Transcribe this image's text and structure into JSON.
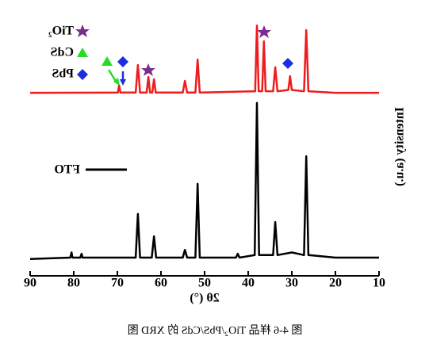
{
  "chart_data": {
    "type": "line",
    "x_label": "2θ (°)",
    "y_label": "Intensity (a.u.)",
    "caption": "图 4-6 样品 TiO₂/PbS/CdS 的 XRD 图",
    "xlim": [
      10,
      90
    ],
    "xticks": [
      10,
      20,
      30,
      40,
      50,
      60,
      70,
      80,
      90
    ],
    "ylim": [
      0,
      100
    ],
    "series": [
      {
        "name": "FTO",
        "color": "#000000",
        "x": [
          10,
          20,
          26.2,
          26.7,
          27.2,
          30,
          33.3,
          33.8,
          34.3,
          37.5,
          38,
          38.5,
          42,
          42.4,
          42.8,
          51.1,
          51.6,
          52.1,
          54,
          54.5,
          55,
          61.1,
          61.6,
          62.1,
          64.8,
          65.3,
          65.8,
          78,
          78.2,
          78.5,
          80.3,
          80.5,
          80.8,
          90
        ],
        "values": [
          7,
          7,
          8,
          46,
          8,
          9,
          8,
          20.7,
          8,
          8,
          66.5,
          8,
          7,
          8.5,
          7,
          7,
          35.4,
          7,
          7,
          10,
          7,
          7,
          15.2,
          7,
          7,
          23.8,
          7,
          7,
          8.5,
          7,
          7,
          9,
          7,
          6.5
        ]
      },
      {
        "name": "TiO₂/PbS/CdS",
        "color": "#ee1c1c",
        "x": [
          10,
          20,
          26.2,
          26.7,
          27.2,
          30,
          30.4,
          30.8,
          33.3,
          33.8,
          34.3,
          36,
          36.4,
          36.8,
          37.6,
          38,
          38.4,
          51.1,
          51.6,
          52.1,
          54,
          54.5,
          55,
          61.2,
          61.6,
          62,
          62.5,
          62.9,
          63.3,
          64.8,
          65.3,
          65.8,
          69.3,
          69.6,
          69.9,
          90
        ],
        "values": [
          70.4,
          70.4,
          71,
          94.5,
          71,
          71.5,
          76.8,
          71.5,
          71,
          80.2,
          71,
          71,
          90.2,
          71,
          71,
          96.3,
          71,
          70.5,
          83.2,
          70.5,
          70.5,
          75,
          70.5,
          70.5,
          75.6,
          70.5,
          70.5,
          76.5,
          70.5,
          70.5,
          81.1,
          70.5,
          70.5,
          73.2,
          70.5,
          70.4
        ]
      }
    ],
    "phase_legend": [
      "TiO₂",
      "CdS",
      "PbS"
    ]
  }
}
